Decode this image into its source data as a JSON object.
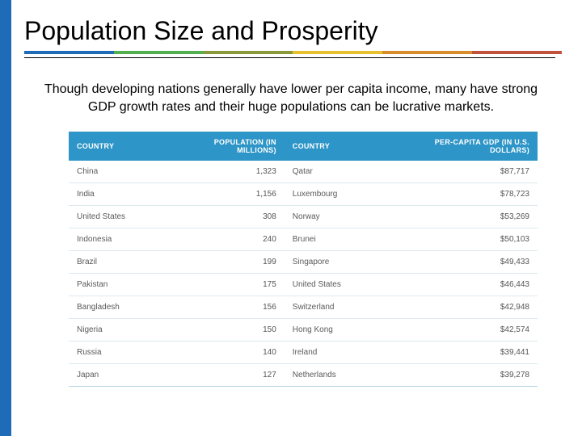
{
  "title": "Population Size and Prosperity",
  "subtitle": "Though developing nations generally have lower per capita  income, many have strong GDP growth rates and their huge populations can be lucrative markets.",
  "accent_colors": [
    "#1e6bb8",
    "#52b04e",
    "#8a9a3a",
    "#e6c02e",
    "#d98c2b",
    "#c1533c"
  ],
  "header_bg": "#2d95c7",
  "header_fg": "#ffffff",
  "row_border": "#dce8ee",
  "outer_border": "#b9d6e4",
  "left_bar_color": "#1e6bb8",
  "columns": [
    {
      "label": "COUNTRY",
      "align": "left"
    },
    {
      "label": "POPULATION (IN MILLIONS)",
      "align": "right"
    },
    {
      "label": "COUNTRY",
      "align": "left"
    },
    {
      "label": "PER-CAPITA GDP (IN U.S. DOLLARS)",
      "align": "right"
    }
  ],
  "rows": [
    {
      "c1": "China",
      "pop": "1,323",
      "c3": "Qatar",
      "gdp": "$87,717"
    },
    {
      "c1": "India",
      "pop": "1,156",
      "c3": "Luxembourg",
      "gdp": "$78,723"
    },
    {
      "c1": "United States",
      "pop": "308",
      "c3": "Norway",
      "gdp": "$53,269"
    },
    {
      "c1": "Indonesia",
      "pop": "240",
      "c3": "Brunei",
      "gdp": "$50,103"
    },
    {
      "c1": "Brazil",
      "pop": "199",
      "c3": "Singapore",
      "gdp": "$49,433"
    },
    {
      "c1": "Pakistan",
      "pop": "175",
      "c3": "United States",
      "gdp": "$46,443"
    },
    {
      "c1": "Bangladesh",
      "pop": "156",
      "c3": "Switzerland",
      "gdp": "$42,948"
    },
    {
      "c1": "Nigeria",
      "pop": "150",
      "c3": "Hong Kong",
      "gdp": "$42,574"
    },
    {
      "c1": "Russia",
      "pop": "140",
      "c3": "Ireland",
      "gdp": "$39,441"
    },
    {
      "c1": "Japan",
      "pop": "127",
      "c3": "Netherlands",
      "gdp": "$39,278"
    }
  ]
}
